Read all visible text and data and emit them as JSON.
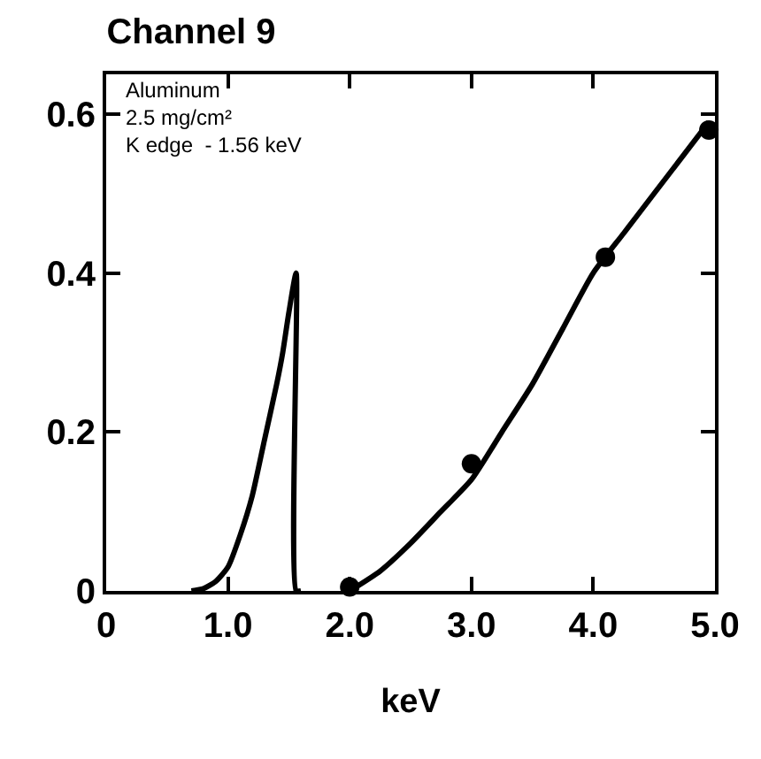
{
  "chart_data": {
    "type": "line",
    "title": "Channel 9",
    "xlabel": "keV",
    "annotations": [
      "Aluminum",
      "2.5 mg/cm²",
      "K edge  - 1.56 keV"
    ],
    "xlim": [
      0,
      5.0
    ],
    "xticks": [
      0,
      {
        "value": 1,
        "label": "1.0"
      },
      {
        "value": 2,
        "label": "2.0"
      },
      {
        "value": 3,
        "label": "3.0"
      },
      {
        "value": 4,
        "label": "4.0"
      },
      {
        "value": 5,
        "label": "5.0"
      }
    ],
    "ylim": [
      0,
      0.65
    ],
    "yticks": [
      0,
      0.2,
      0.4,
      0.6
    ],
    "series": [
      {
        "color": "#000000",
        "marker": "none",
        "line_style": "solid",
        "x": [
          0.7,
          0.8,
          0.9,
          1.0,
          1.1,
          1.2,
          1.3,
          1.4,
          1.45,
          1.5,
          1.56,
          1.56,
          1.6
        ],
        "values": [
          0,
          0.003,
          0.012,
          0.03,
          0.07,
          0.12,
          0.19,
          0.26,
          0.3,
          0.35,
          0.4,
          0,
          0
        ]
      },
      {
        "color": "#000000",
        "marker": "none",
        "line_style": "solid",
        "x": [
          2.0,
          2.25,
          2.5,
          2.75,
          3.0,
          3.25,
          3.5,
          3.75,
          4.0,
          4.25,
          4.5,
          4.75,
          4.95
        ],
        "values": [
          0,
          0.025,
          0.06,
          0.1,
          0.14,
          0.2,
          0.26,
          0.33,
          0.4,
          0.45,
          0.5,
          0.55,
          0.59
        ]
      },
      {
        "type": "scatter",
        "color": "#000000",
        "marker": "circle",
        "x": [
          2.0,
          3.0,
          4.1,
          4.95
        ],
        "values": [
          0.005,
          0.16,
          0.42,
          0.58
        ]
      }
    ]
  }
}
